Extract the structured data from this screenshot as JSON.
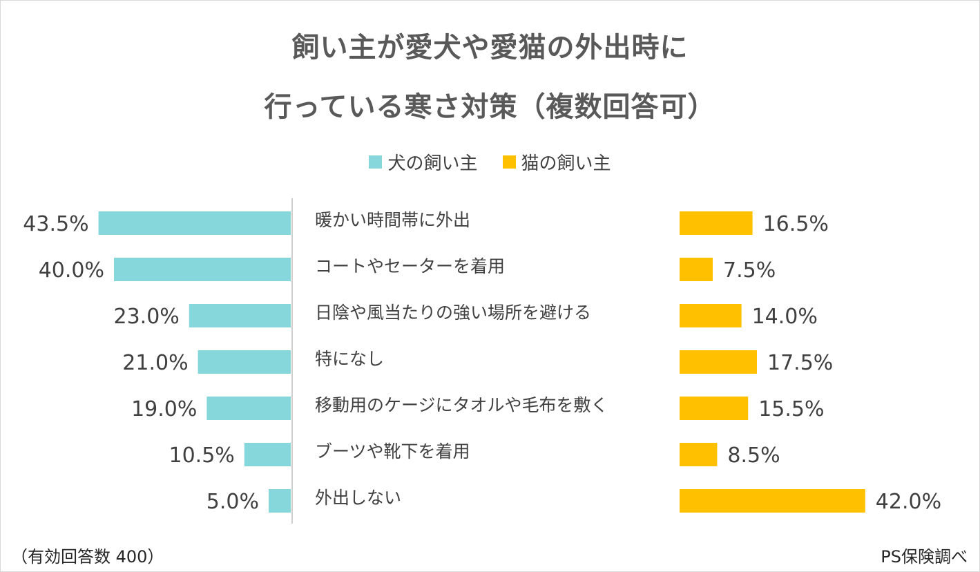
{
  "title_line1": "飼い主が愛犬や愛猫の外出時に",
  "title_line2": "行っている寒さ対策（複数回答可）",
  "footnote_left": "（有効回答数 400）",
  "footnote_right": "PS保険調べ",
  "colors": {
    "dog": "#85d7dc",
    "cat": "#ffc000",
    "divider": "#bfbfbf"
  },
  "chart_data": {
    "type": "bar",
    "categories": [
      "暖かい時間帯に外出",
      "コートやセーターを着用",
      "日陰や風当たりの強い場所を避ける",
      "特になし",
      "移動用のケージにタオルや毛布を敷く",
      "ブーツや靴下を着用",
      "外出しない"
    ],
    "series": [
      {
        "name": "犬の飼い主",
        "values": [
          43.5,
          40.0,
          23.0,
          21.0,
          19.0,
          10.5,
          5.0
        ],
        "labels": [
          "43.5%",
          "40.0%",
          "23.0%",
          "21.0%",
          "19.0%",
          "10.5%",
          "5.0%"
        ]
      },
      {
        "name": "猫の飼い主",
        "values": [
          16.5,
          7.5,
          14.0,
          17.5,
          15.5,
          8.5,
          42.0
        ],
        "labels": [
          "16.5%",
          "7.5%",
          "14.0%",
          "17.5%",
          "15.5%",
          "8.5%",
          "42.0%"
        ]
      }
    ],
    "unit": "%",
    "legend_position": "top",
    "grid": false
  }
}
